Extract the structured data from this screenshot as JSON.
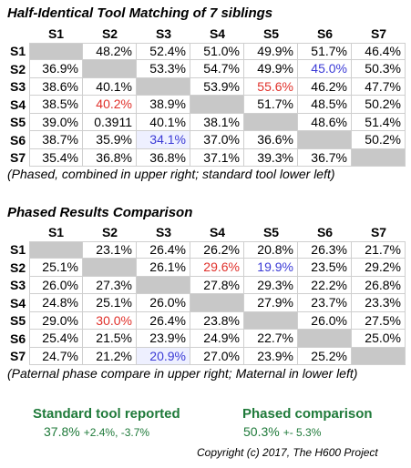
{
  "table1": {
    "title": "Half-Identical Tool Matching of 7 siblings",
    "columns": [
      "S1",
      "S2",
      "S3",
      "S4",
      "S5",
      "S6",
      "S7"
    ],
    "rows": [
      {
        "label": "S1",
        "cells": [
          "",
          "48.2%",
          "52.4%",
          "51.0%",
          "49.9%",
          "51.7%",
          "46.4%"
        ]
      },
      {
        "label": "S2",
        "cells": [
          "36.9%",
          "",
          "53.3%",
          "54.7%",
          "49.9%",
          "45.0%",
          "50.3%"
        ]
      },
      {
        "label": "S3",
        "cells": [
          "38.6%",
          "40.1%",
          "",
          "53.9%",
          "55.6%",
          "46.2%",
          "47.7%"
        ]
      },
      {
        "label": "S4",
        "cells": [
          "38.5%",
          "40.2%",
          "38.9%",
          "",
          "51.7%",
          "48.5%",
          "50.2%"
        ]
      },
      {
        "label": "S5",
        "cells": [
          "39.0%",
          "0.3911",
          "40.1%",
          "38.1%",
          "",
          "48.6%",
          "51.4%"
        ]
      },
      {
        "label": "S6",
        "cells": [
          "38.7%",
          "35.9%",
          "34.1%",
          "37.0%",
          "36.6%",
          "",
          "50.2%"
        ]
      },
      {
        "label": "S7",
        "cells": [
          "35.4%",
          "36.8%",
          "36.8%",
          "37.1%",
          "39.3%",
          "36.7%",
          ""
        ]
      }
    ],
    "note": "(Phased, combined in upper right; standard tool lower left)"
  },
  "table2": {
    "title": "Phased Results Comparison",
    "columns": [
      "S1",
      "S2",
      "S3",
      "S4",
      "S5",
      "S6",
      "S7"
    ],
    "rows": [
      {
        "label": "S1",
        "cells": [
          "",
          "23.1%",
          "26.4%",
          "26.2%",
          "20.8%",
          "26.3%",
          "21.7%"
        ]
      },
      {
        "label": "S2",
        "cells": [
          "25.1%",
          "",
          "26.1%",
          "29.6%",
          "19.9%",
          "23.5%",
          "29.2%"
        ]
      },
      {
        "label": "S3",
        "cells": [
          "26.0%",
          "27.3%",
          "",
          "27.8%",
          "29.3%",
          "22.2%",
          "26.8%"
        ]
      },
      {
        "label": "S4",
        "cells": [
          "24.8%",
          "25.1%",
          "26.0%",
          "",
          "27.9%",
          "23.7%",
          "23.3%"
        ]
      },
      {
        "label": "S5",
        "cells": [
          "29.0%",
          "30.0%",
          "26.4%",
          "23.8%",
          "",
          "26.0%",
          "27.5%"
        ]
      },
      {
        "label": "S6",
        "cells": [
          "25.4%",
          "21.5%",
          "23.9%",
          "24.9%",
          "22.7%",
          "",
          "25.0%"
        ]
      },
      {
        "label": "S7",
        "cells": [
          "24.7%",
          "21.2%",
          "20.9%",
          "27.0%",
          "23.9%",
          "25.2%",
          ""
        ]
      }
    ],
    "note": "(Paternal phase compare in upper right; Maternal in lower left)"
  },
  "highlights": {
    "table1": {
      "red": [
        [
          2,
          4
        ],
        [
          3,
          1
        ]
      ],
      "blue": [
        [
          1,
          5
        ],
        [
          5,
          2
        ]
      ],
      "light_blue": [
        [
          5,
          2
        ]
      ]
    },
    "table2": {
      "red": [
        [
          1,
          3
        ],
        [
          4,
          1
        ]
      ],
      "blue": [
        [
          1,
          4
        ],
        [
          6,
          2
        ]
      ],
      "light_blue": [
        [
          6,
          2
        ]
      ]
    }
  },
  "summary": {
    "standard_label": "Standard tool reported",
    "standard_value": "37.8%",
    "standard_range": "+2.4%, -3.7%",
    "phased_label": "Phased comparison",
    "phased_value": "50.3%",
    "phased_range": "+- 5.3%"
  },
  "copyright": "Copyright (c) 2017, The H600 Project",
  "colors": {
    "red": "#e0302a",
    "blue": "#3b3bd6",
    "green": "#1f7a3a",
    "diagonal": "#c8c8c8"
  }
}
